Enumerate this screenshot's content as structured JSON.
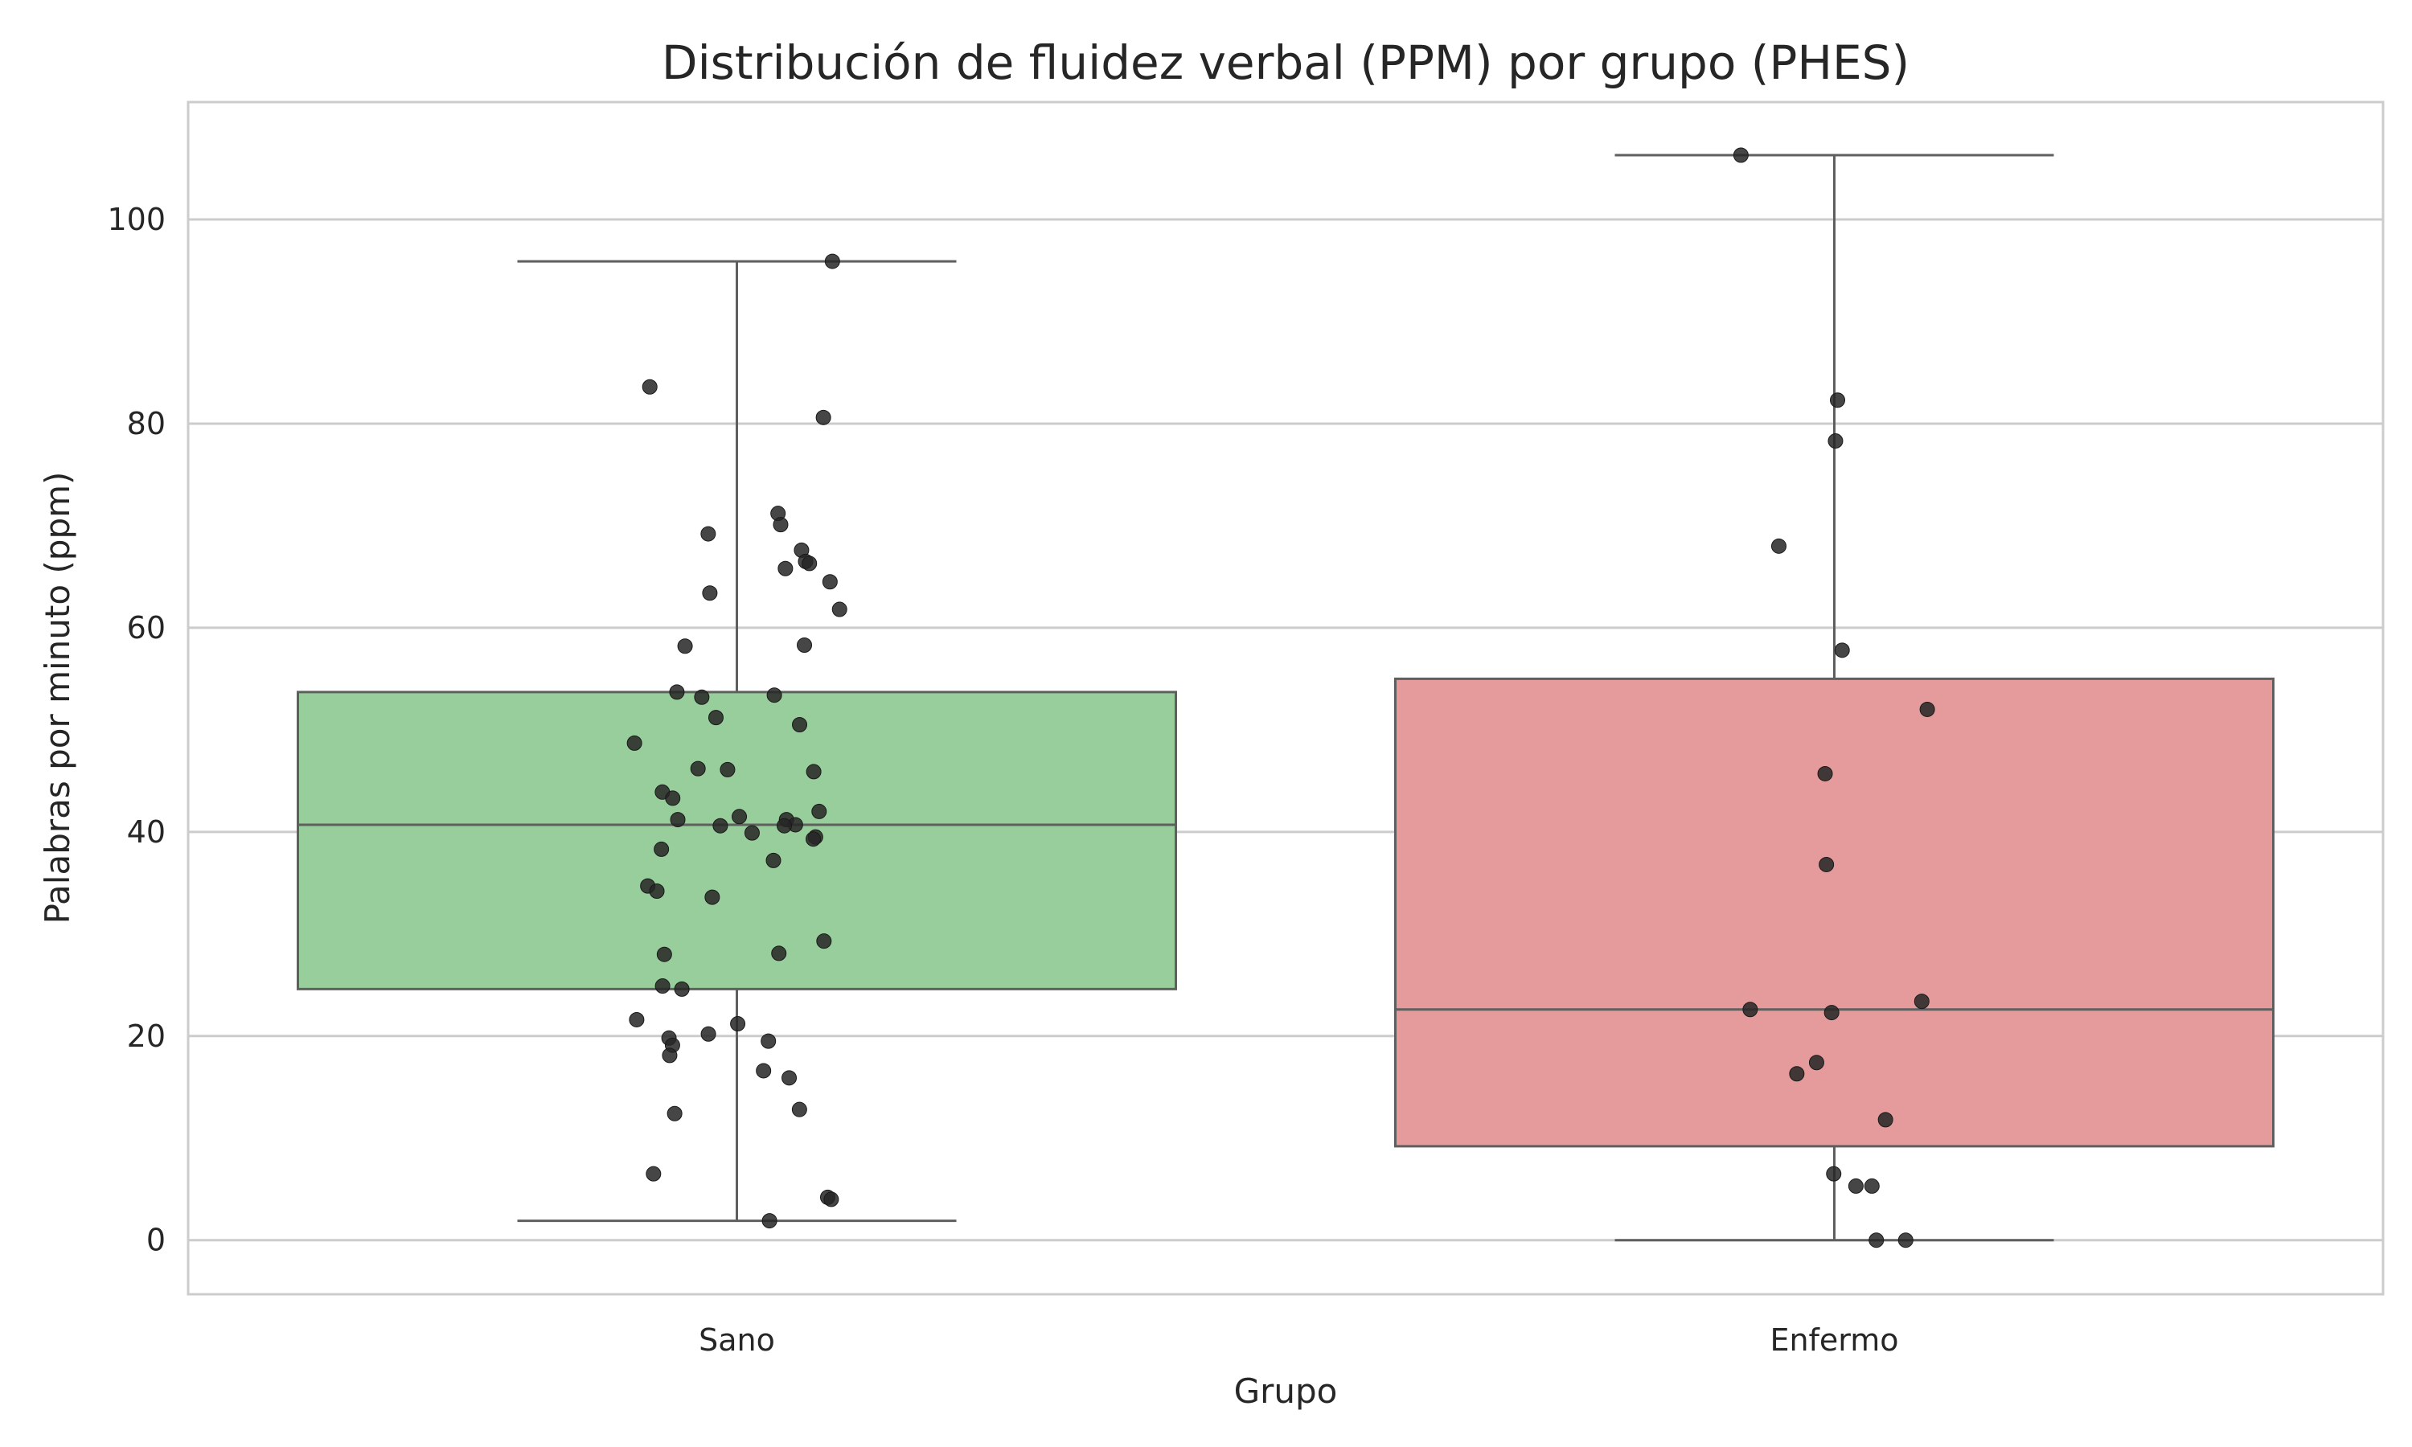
{
  "chart_data": {
    "type": "box",
    "title": "Distribución de fluidez verbal (PPM) por grupo (PHES)",
    "xlabel": "Grupo",
    "ylabel": "Palabras por minuto (ppm)",
    "ylim": [
      -5.3,
      111.5
    ],
    "yticks": [
      0,
      20,
      40,
      60,
      80,
      100
    ],
    "ytick_labels": [
      "0",
      "20",
      "40",
      "60",
      "80",
      "100"
    ],
    "grid": "horizontal",
    "categories": [
      "Sano",
      "Enfermo"
    ],
    "boxes": [
      {
        "category": "Sano",
        "color": "#98CE9B",
        "whisker_low": 1.9,
        "q1": 24.6,
        "median": 40.7,
        "q3": 53.7,
        "whisker_high": 95.9
      },
      {
        "category": "Enfermo",
        "color": "#E59A9B",
        "whisker_low": 0.0,
        "q1": 9.2,
        "median": 22.6,
        "q3": 55.0,
        "whisker_high": 106.3
      }
    ],
    "points": [
      {
        "category": "Sano",
        "values": [
          95.9,
          83.6,
          80.6,
          71.2,
          70.1,
          69.2,
          67.6,
          66.5,
          66.3,
          65.8,
          64.5,
          63.4,
          61.8,
          58.3,
          58.2,
          53.7,
          53.4,
          53.2,
          51.2,
          50.5,
          48.7,
          46.2,
          46.1,
          45.9,
          43.9,
          43.3,
          42.0,
          41.5,
          41.2,
          41.2,
          40.7,
          40.6,
          40.6,
          39.9,
          39.5,
          39.3,
          38.3,
          37.2,
          34.7,
          34.2,
          33.6,
          29.3,
          28.1,
          28.0,
          24.9,
          24.6,
          21.6,
          21.2,
          20.2,
          19.8,
          19.5,
          19.1,
          18.1,
          16.6,
          15.9,
          12.8,
          12.4,
          6.5,
          4.2,
          4.0,
          1.9
        ]
      },
      {
        "category": "Enfermo",
        "values": [
          106.3,
          82.3,
          78.3,
          68.0,
          57.8,
          52.0,
          45.7,
          36.8,
          23.4,
          22.6,
          22.3,
          17.4,
          16.3,
          11.8,
          6.5,
          5.3,
          5.3,
          0.0,
          0.0
        ]
      }
    ]
  }
}
